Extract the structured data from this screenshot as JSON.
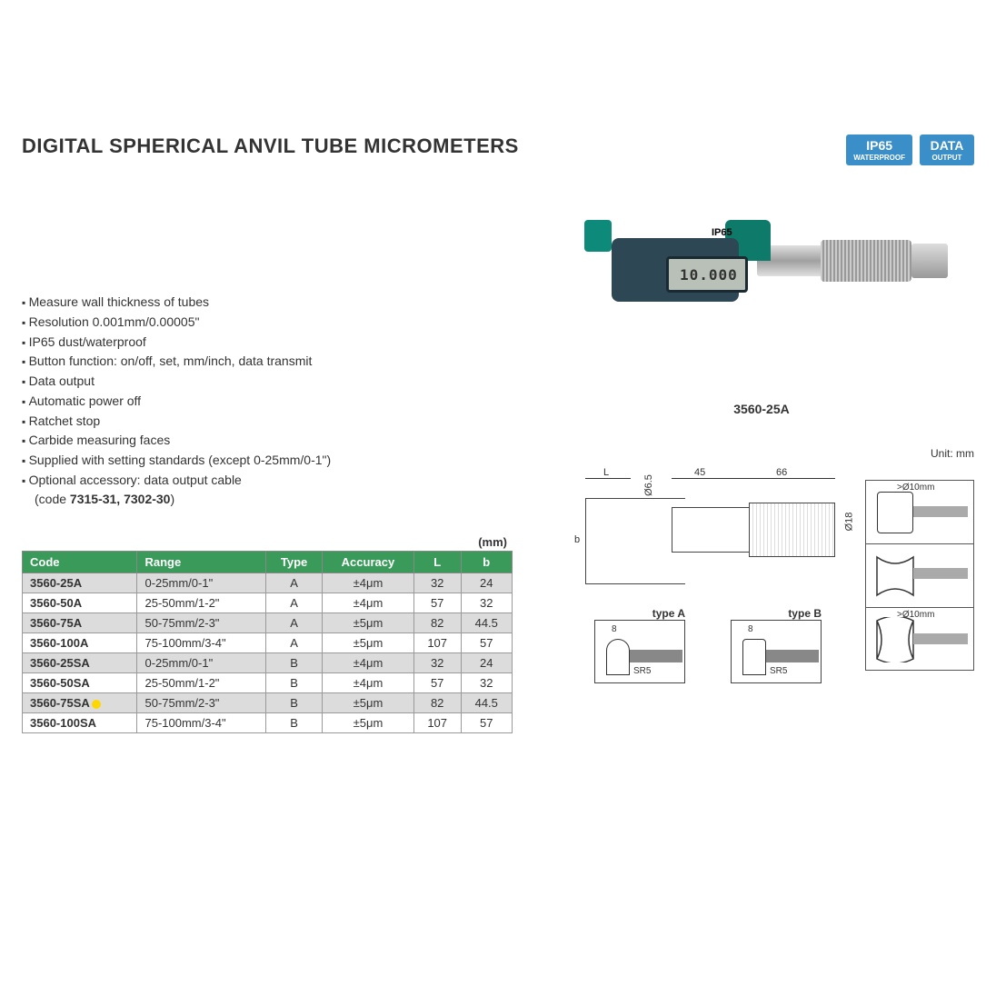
{
  "title": "DIGITAL SPHERICAL ANVIL TUBE MICROMETERS",
  "badges": {
    "ip65": {
      "line1": "IP65",
      "line2": "WATERPROOF"
    },
    "data": {
      "line1": "DATA",
      "line2": "OUTPUT"
    }
  },
  "features": [
    "Measure wall thickness of tubes",
    "Resolution 0.001mm/0.00005\"",
    "IP65 dust/waterproof",
    "Button function: on/off, set, mm/inch, data transmit",
    "Data output",
    "Automatic power off",
    "Ratchet stop",
    "Carbide measuring faces",
    "Supplied with setting standards (except 0-25mm/0-1\")"
  ],
  "optional_label": "Optional accessory: data output cable",
  "optional_codes": "7315-31, 7302-30",
  "optional_code_prefix": "(code ",
  "optional_code_suffix": ")",
  "photo_caption": "3560-25A",
  "photo_ip65": "IP65",
  "photo_display": "10.000",
  "table": {
    "unit": "(mm)",
    "columns": [
      "Code",
      "Range",
      "Type",
      "Accuracy",
      "L",
      "b"
    ],
    "rows": [
      {
        "code": "3560-25A",
        "range": "0-25mm/0-1\"",
        "type": "A",
        "accuracy": "±4μm",
        "L": "32",
        "b": "24",
        "hl": false
      },
      {
        "code": "3560-50A",
        "range": "25-50mm/1-2\"",
        "type": "A",
        "accuracy": "±4μm",
        "L": "57",
        "b": "32",
        "hl": false
      },
      {
        "code": "3560-75A",
        "range": "50-75mm/2-3\"",
        "type": "A",
        "accuracy": "±5μm",
        "L": "82",
        "b": "44.5",
        "hl": false
      },
      {
        "code": "3560-100A",
        "range": "75-100mm/3-4\"",
        "type": "A",
        "accuracy": "±5μm",
        "L": "107",
        "b": "57",
        "hl": false
      },
      {
        "code": "3560-25SA",
        "range": "0-25mm/0-1\"",
        "type": "B",
        "accuracy": "±4μm",
        "L": "32",
        "b": "24",
        "hl": false
      },
      {
        "code": "3560-50SA",
        "range": "25-50mm/1-2\"",
        "type": "B",
        "accuracy": "±4μm",
        "L": "57",
        "b": "32",
        "hl": false
      },
      {
        "code": "3560-75SA",
        "range": "50-75mm/2-3\"",
        "type": "B",
        "accuracy": "±5μm",
        "L": "82",
        "b": "44.5",
        "hl": true
      },
      {
        "code": "3560-100SA",
        "range": "75-100mm/3-4\"",
        "type": "B",
        "accuracy": "±5μm",
        "L": "107",
        "b": "57",
        "hl": false
      }
    ],
    "header_bg": "#3a9a5a",
    "row_odd_bg": "#dcdcdc",
    "row_even_bg": "#ffffff",
    "highlight_color": "#ffd700"
  },
  "diagram": {
    "unit_label": "Unit: mm",
    "dims": {
      "L": "L",
      "d1": "Ø6.5",
      "w1": "45",
      "w2": "66",
      "d2": "Ø18",
      "b": "b"
    },
    "typeA": {
      "label": "type A",
      "dim": "8",
      "sr": "SR5"
    },
    "typeB": {
      "label": "type B",
      "dim": "8",
      "sr": "SR5"
    },
    "side": {
      "top": ">Ø10mm",
      "bottom": ">Ø10mm"
    }
  }
}
